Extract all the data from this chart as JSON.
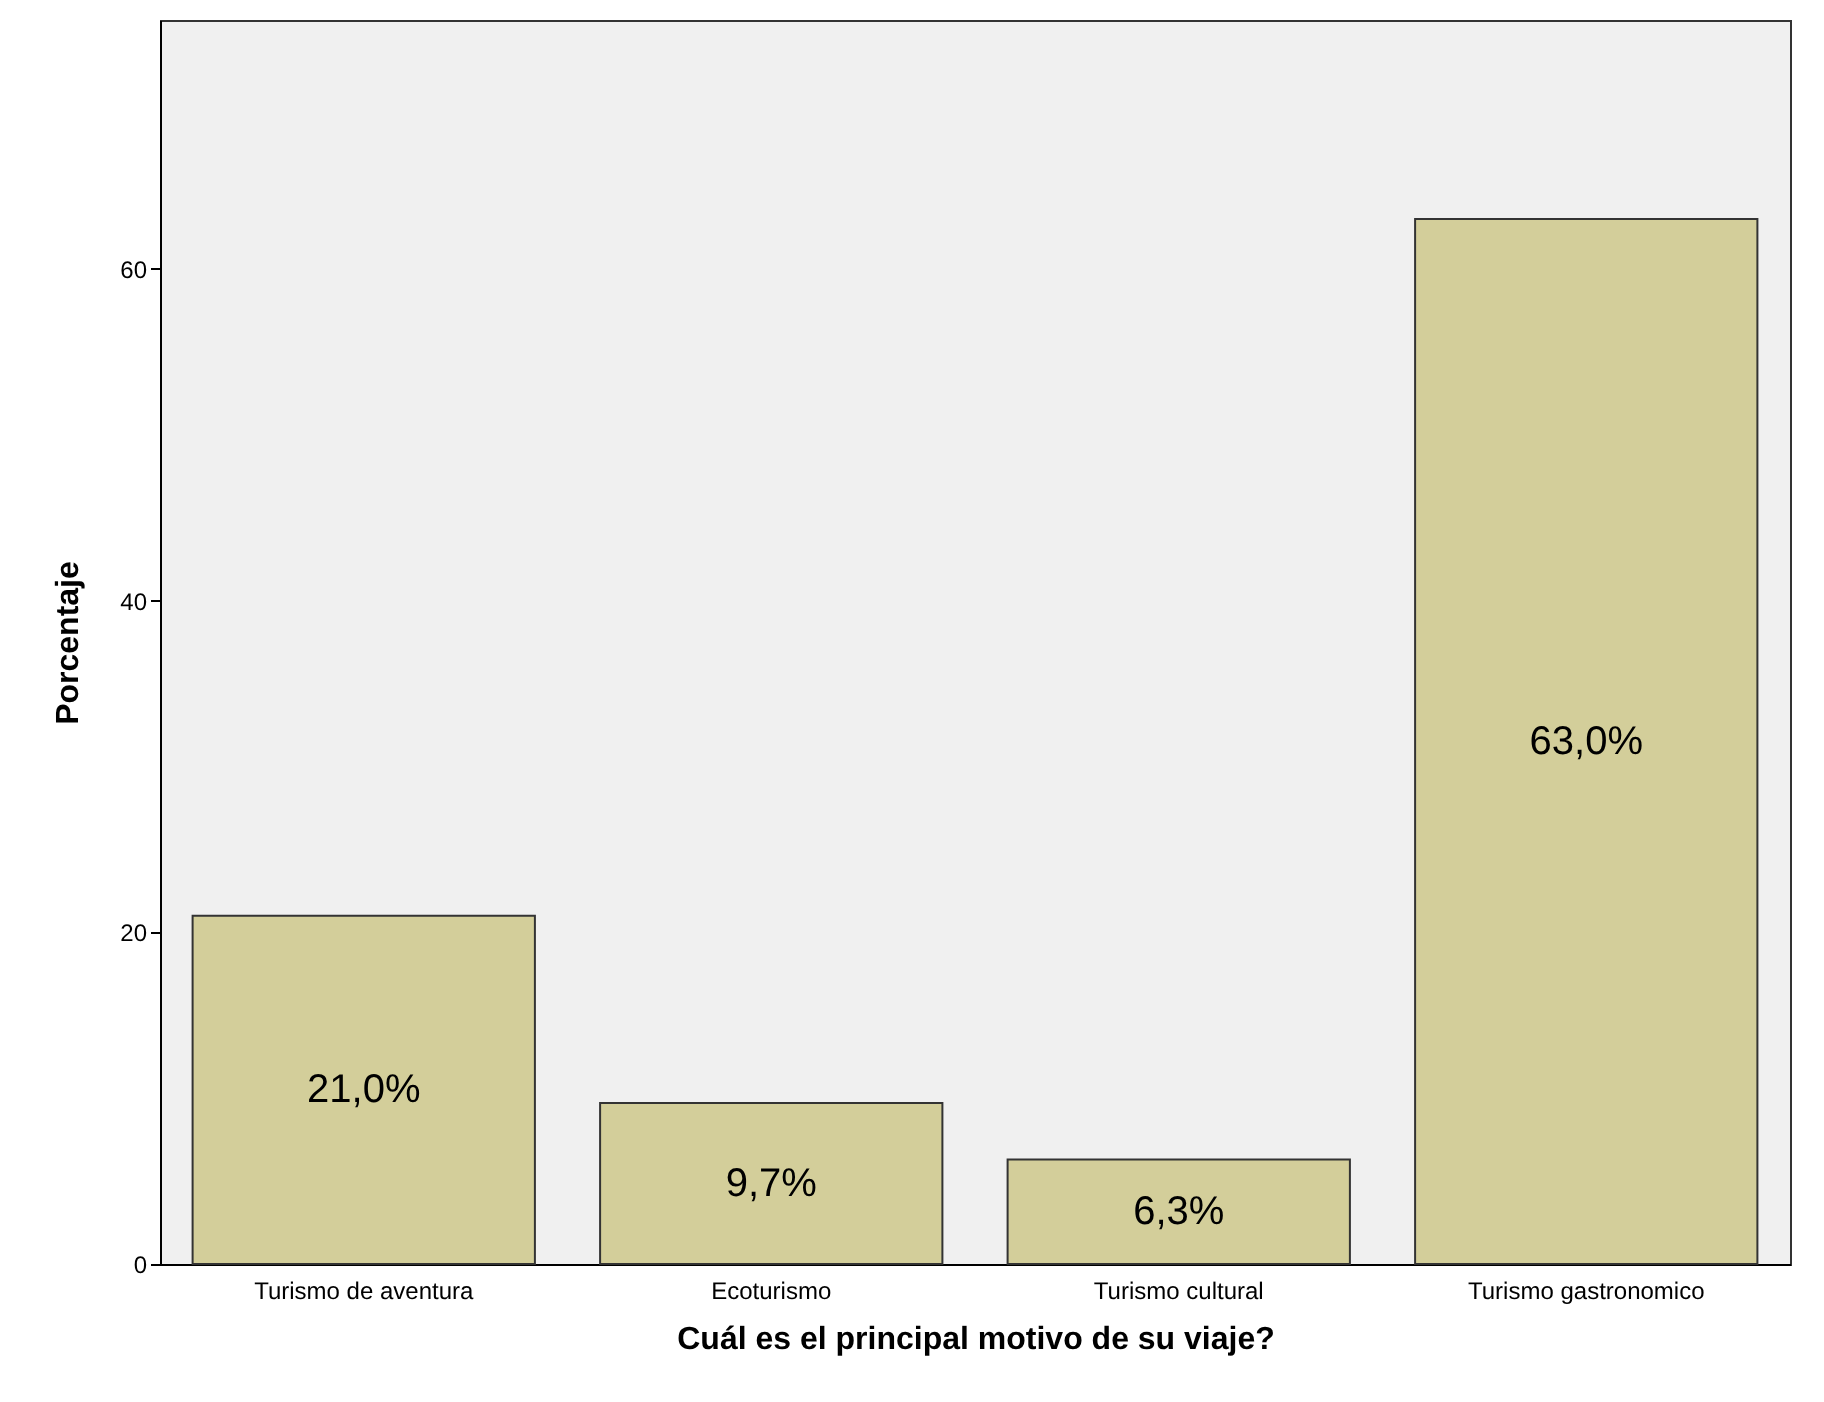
{
  "chart_data": {
    "type": "bar",
    "xlabel": "Cuál es el principal motivo de su viaje?",
    "ylabel": "Porcentaje",
    "categories": [
      "Turismo de aventura",
      "Ecoturismo",
      "Turismo cultural",
      "Turismo gastronomico"
    ],
    "values": [
      21.0,
      9.7,
      6.3,
      63.0
    ],
    "value_labels": [
      "21,0%",
      "9,7%",
      "6,3%",
      "63,0%"
    ],
    "color": "#d3ce9a",
    "ylim": [
      0,
      75
    ],
    "yticks": [
      0,
      20,
      40,
      60
    ],
    "grid": false
  }
}
